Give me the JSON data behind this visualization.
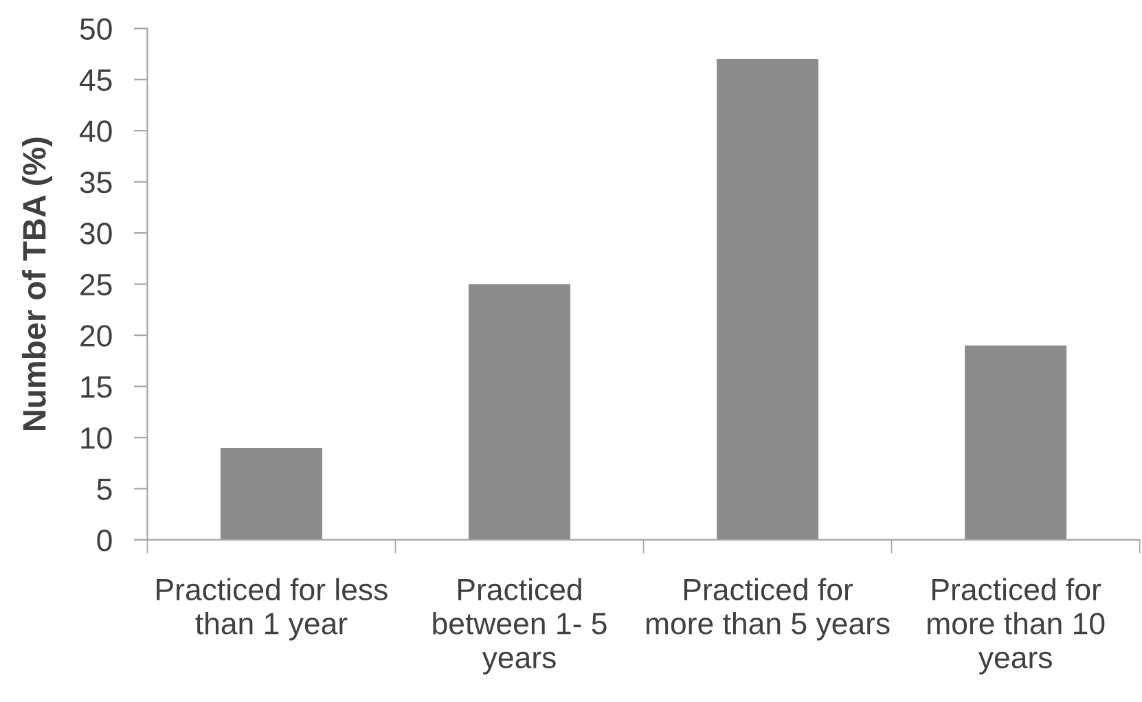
{
  "chart_data": {
    "type": "bar",
    "ylabel": "Number of TBA (%)",
    "categories": [
      "Practiced for less\nthan 1 year",
      "Practiced\nbetween 1- 5\nyears",
      "Practiced for\nmore than 5 years",
      "Practiced for\nmore than 10\nyears"
    ],
    "values": [
      9,
      25,
      47,
      19
    ],
    "color": "#8c8c8c",
    "ylim": [
      0,
      50
    ],
    "yticks": [
      0,
      5,
      10,
      15,
      20,
      25,
      30,
      35,
      40,
      45,
      50
    ],
    "grid": false,
    "legend": false
  }
}
